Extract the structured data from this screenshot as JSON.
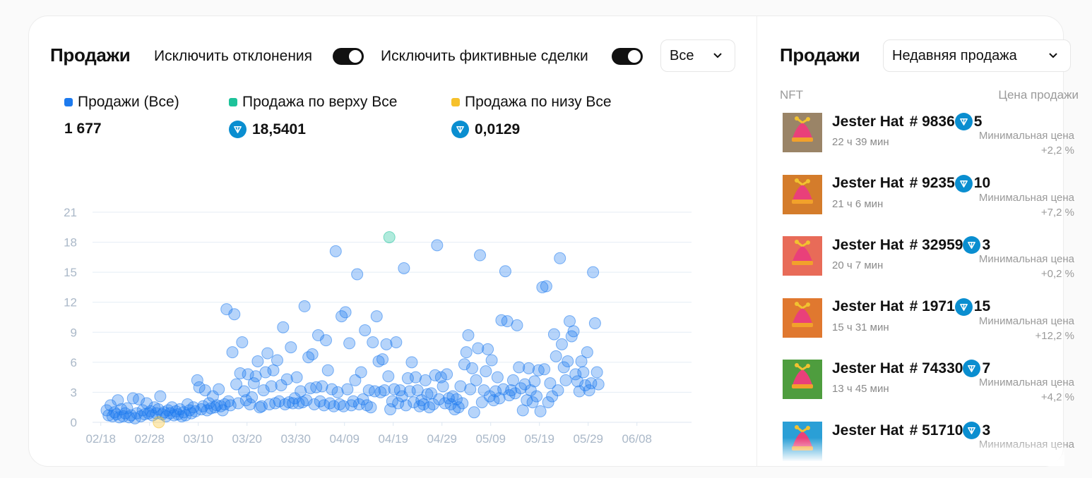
{
  "left": {
    "title": "Продажи",
    "toggle1_label": "Исключить отклонения",
    "toggle2_label": "Исключить фиктивные сделки",
    "filter_value": "Все",
    "legend": [
      {
        "label": "Продажи (Все)",
        "value": "1 677",
        "color": "#1d7aee"
      },
      {
        "label": "Продажа по верху Все",
        "value": "18,5401",
        "color": "#1dc29a"
      },
      {
        "label": "Продажа по низу Все",
        "value": "0,0129",
        "color": "#f6c12b"
      }
    ]
  },
  "right": {
    "title": "Продажи",
    "sort_value": "Недавняя продажа",
    "col_nft": "NFT",
    "col_price": "Цена продажи",
    "min_label": "Минимальная цена",
    "items": [
      {
        "name": "Jester Hat",
        "number": "# 9836",
        "price": "5",
        "time": "22 ч 39 мин",
        "delta": "+2,2 %",
        "bg": "#9a8467"
      },
      {
        "name": "Jester Hat",
        "number": "# 9235",
        "price": "10",
        "time": "21 ч 6 мин",
        "delta": "+7,2 %",
        "bg": "#d47c2b"
      },
      {
        "name": "Jester Hat",
        "number": "# 32959",
        "price": "3",
        "time": "20 ч 7 мин",
        "delta": "+0,2 %",
        "bg": "#e86b58"
      },
      {
        "name": "Jester Hat",
        "number": "# 1971",
        "price": "15",
        "time": "15 ч 31 мин",
        "delta": "+12,2 %",
        "bg": "#e0782f"
      },
      {
        "name": "Jester Hat",
        "number": "# 74330",
        "price": "7",
        "time": "13 ч 45 мин",
        "delta": "+4,2 %",
        "bg": "#4e9d3e"
      },
      {
        "name": "Jester Hat",
        "number": "# 51710",
        "price": "3",
        "time": "",
        "delta": "",
        "bg": "#2a9fd6"
      }
    ]
  },
  "chart_data": {
    "type": "scatter",
    "title": "",
    "xlabel": "",
    "ylabel": "",
    "x_ticks": [
      "02/18",
      "02/28",
      "03/10",
      "03/20",
      "03/30",
      "04/09",
      "04/19",
      "04/29",
      "05/09",
      "05/19",
      "05/29",
      "06/08"
    ],
    "y_ticks": [
      0,
      3,
      6,
      9,
      12,
      15,
      18,
      21
    ],
    "ylim": [
      0,
      21
    ],
    "grid": true,
    "x_range_days": [
      0,
      120
    ],
    "series": [
      {
        "name": "Продажи (Все)",
        "color": "#1d7aee",
        "points": [
          [
            0,
            1.2
          ],
          [
            0.4,
            0.7
          ],
          [
            0.8,
            1.7
          ],
          [
            1.2,
            0.6
          ],
          [
            1.6,
            1.0
          ],
          [
            2,
            0.8
          ],
          [
            2.3,
            2.2
          ],
          [
            2.6,
            0.5
          ],
          [
            3,
            1.3
          ],
          [
            3.4,
            0.6
          ],
          [
            3.8,
            0.9
          ],
          [
            4.2,
            1.4
          ],
          [
            4.6,
            0.5
          ],
          [
            5,
            0.7
          ],
          [
            5.4,
            2.4
          ],
          [
            5.8,
            0.4
          ],
          [
            6.2,
            0.9
          ],
          [
            6.6,
            2.3
          ],
          [
            7,
            0.6
          ],
          [
            7.4,
            1.2
          ],
          [
            7.8,
            0.8
          ],
          [
            8.2,
            1.9
          ],
          [
            8.6,
            0.9
          ],
          [
            9,
            1.1
          ],
          [
            9.4,
            0.7
          ],
          [
            9.8,
            1.5
          ],
          [
            10.2,
            0.9
          ],
          [
            10.6,
            1.3
          ],
          [
            11,
            2.6
          ],
          [
            11.4,
            0.8
          ],
          [
            11.8,
            1.0
          ],
          [
            12.2,
            0.6
          ],
          [
            12.6,
            1.2
          ],
          [
            13,
            0.9
          ],
          [
            13.4,
            1.5
          ],
          [
            13.8,
            0.7
          ],
          [
            14.2,
            1.1
          ],
          [
            14.6,
            0.8
          ],
          [
            15,
            1.3
          ],
          [
            15.4,
            0.6
          ],
          [
            15.8,
            1.0
          ],
          [
            16.2,
            0.7
          ],
          [
            16.6,
            1.8
          ],
          [
            17,
            1.2
          ],
          [
            17.4,
            0.9
          ],
          [
            17.8,
            1.5
          ],
          [
            18.2,
            1.1
          ],
          [
            18.6,
            4.2
          ],
          [
            19,
            3.5
          ],
          [
            19.4,
            1.3
          ],
          [
            19.8,
            1.6
          ],
          [
            20.2,
            3.2
          ],
          [
            20.6,
            1.2
          ],
          [
            21,
            1.9
          ],
          [
            21.4,
            1.4
          ],
          [
            21.8,
            2.6
          ],
          [
            22.2,
            1.5
          ],
          [
            22.6,
            1.7
          ],
          [
            23,
            3.3
          ],
          [
            23.4,
            1.6
          ],
          [
            23.8,
            1.2
          ],
          [
            24.2,
            1.8
          ],
          [
            24.6,
            11.3
          ],
          [
            25,
            2.1
          ],
          [
            25.4,
            1.7
          ],
          [
            25.8,
            7.0
          ],
          [
            26.2,
            10.8
          ],
          [
            26.6,
            3.8
          ],
          [
            27,
            1.9
          ],
          [
            27.4,
            4.9
          ],
          [
            27.8,
            8.0
          ],
          [
            28.2,
            3.1
          ],
          [
            28.6,
            2.2
          ],
          [
            29,
            4.8
          ],
          [
            29.4,
            1.8
          ],
          [
            29.8,
            2.5
          ],
          [
            30.2,
            3.9
          ],
          [
            30.6,
            4.6
          ],
          [
            31,
            6.1
          ],
          [
            31.4,
            1.5
          ],
          [
            31.8,
            1.6
          ],
          [
            32.2,
            3.2
          ],
          [
            32.6,
            5.0
          ],
          [
            33,
            6.9
          ],
          [
            33.4,
            1.8
          ],
          [
            33.8,
            3.6
          ],
          [
            34.2,
            5.2
          ],
          [
            34.6,
            1.9
          ],
          [
            35,
            6.2
          ],
          [
            35.4,
            2.1
          ],
          [
            35.8,
            3.7
          ],
          [
            36.2,
            9.5
          ],
          [
            36.6,
            1.8
          ],
          [
            37,
            4.3
          ],
          [
            37.4,
            2.0
          ],
          [
            37.8,
            7.5
          ],
          [
            38.2,
            1.9
          ],
          [
            38.6,
            2.4
          ],
          [
            39,
            4.5
          ],
          [
            39.4,
            1.9
          ],
          [
            39.8,
            3.1
          ],
          [
            40.2,
            2.0
          ],
          [
            40.6,
            11.6
          ],
          [
            41,
            2.2
          ],
          [
            41.4,
            6.5
          ],
          [
            41.8,
            3.4
          ],
          [
            42.2,
            6.8
          ],
          [
            42.6,
            1.8
          ],
          [
            43,
            3.5
          ],
          [
            43.4,
            8.7
          ],
          [
            43.8,
            2.1
          ],
          [
            44.2,
            3.6
          ],
          [
            44.6,
            1.7
          ],
          [
            45,
            8.2
          ],
          [
            45.4,
            5.2
          ],
          [
            45.8,
            1.9
          ],
          [
            46.2,
            3.3
          ],
          [
            46.6,
            1.6
          ],
          [
            47,
            17.1
          ],
          [
            47.4,
            3.0
          ],
          [
            47.8,
            1.8
          ],
          [
            48.2,
            10.6
          ],
          [
            48.6,
            1.6
          ],
          [
            49,
            11.0
          ],
          [
            49.4,
            3.3
          ],
          [
            49.8,
            7.9
          ],
          [
            50.2,
            1.7
          ],
          [
            50.6,
            2.1
          ],
          [
            51,
            4.2
          ],
          [
            51.4,
            14.8
          ],
          [
            51.8,
            1.8
          ],
          [
            52.2,
            5.0
          ],
          [
            52.6,
            2.3
          ],
          [
            53,
            9.2
          ],
          [
            53.4,
            1.7
          ],
          [
            53.8,
            3.2
          ],
          [
            54.2,
            1.5
          ],
          [
            54.6,
            8.0
          ],
          [
            55,
            3.1
          ],
          [
            55.4,
            10.6
          ],
          [
            55.8,
            6.1
          ],
          [
            56.2,
            3.0
          ],
          [
            56.6,
            6.3
          ],
          [
            57,
            3.2
          ],
          [
            57.4,
            7.8
          ],
          [
            57.8,
            4.6
          ],
          [
            58.2,
            1.3
          ],
          [
            58.6,
            2.1
          ],
          [
            59,
            3.3
          ],
          [
            59.4,
            8.0
          ],
          [
            59.8,
            1.9
          ],
          [
            60.2,
            3.2
          ],
          [
            60.6,
            2.6
          ],
          [
            61,
            15.4
          ],
          [
            61.4,
            1.7
          ],
          [
            61.8,
            4.4
          ],
          [
            62.2,
            3.1
          ],
          [
            62.6,
            6.0
          ],
          [
            63,
            2.0
          ],
          [
            63.4,
            4.5
          ],
          [
            63.8,
            3.2
          ],
          [
            64.2,
            1.6
          ],
          [
            64.6,
            2.2
          ],
          [
            65,
            1.8
          ],
          [
            65.4,
            4.2
          ],
          [
            65.8,
            2.8
          ],
          [
            66.2,
            1.5
          ],
          [
            66.6,
            2.9
          ],
          [
            67,
            1.8
          ],
          [
            67.4,
            4.7
          ],
          [
            67.8,
            17.7
          ],
          [
            68.2,
            2.3
          ],
          [
            68.6,
            4.5
          ],
          [
            69,
            3.6
          ],
          [
            69.4,
            1.9
          ],
          [
            69.8,
            4.8
          ],
          [
            70.2,
            2.4
          ],
          [
            70.6,
            1.8
          ],
          [
            71,
            2.6
          ],
          [
            71.4,
            1.3
          ],
          [
            71.8,
            2.3
          ],
          [
            72.2,
            1.5
          ],
          [
            72.6,
            3.6
          ],
          [
            73,
            1.9
          ],
          [
            73.4,
            5.8
          ],
          [
            73.8,
            7.0
          ],
          [
            74.2,
            8.7
          ],
          [
            74.6,
            3.3
          ],
          [
            75,
            5.4
          ],
          [
            75.4,
            1.0
          ],
          [
            75.8,
            4.2
          ],
          [
            76.2,
            7.4
          ],
          [
            76.6,
            16.7
          ],
          [
            77,
            2.0
          ],
          [
            77.4,
            3.2
          ],
          [
            77.8,
            5.1
          ],
          [
            78.2,
            7.3
          ],
          [
            78.6,
            2.6
          ],
          [
            79,
            6.2
          ],
          [
            79.4,
            2.2
          ],
          [
            79.8,
            3.1
          ],
          [
            80.2,
            4.5
          ],
          [
            80.6,
            2.4
          ],
          [
            81,
            10.2
          ],
          [
            81.4,
            3.3
          ],
          [
            81.8,
            15.1
          ],
          [
            82.2,
            10.1
          ],
          [
            82.6,
            2.7
          ],
          [
            83,
            3.2
          ],
          [
            83.4,
            4.2
          ],
          [
            83.8,
            2.9
          ],
          [
            84.2,
            9.7
          ],
          [
            84.6,
            5.5
          ],
          [
            85,
            3.4
          ],
          [
            85.4,
            1.2
          ],
          [
            85.8,
            3.8
          ],
          [
            86.2,
            2.2
          ],
          [
            86.6,
            5.4
          ],
          [
            87,
            3.2
          ],
          [
            87.4,
            2.0
          ],
          [
            87.8,
            4.1
          ],
          [
            88.2,
            2.6
          ],
          [
            88.6,
            5.2
          ],
          [
            89,
            1.1
          ],
          [
            89.4,
            13.5
          ],
          [
            89.8,
            5.3
          ],
          [
            90.2,
            13.6
          ],
          [
            90.6,
            2.0
          ],
          [
            91,
            3.9
          ],
          [
            91.4,
            2.6
          ],
          [
            91.8,
            8.8
          ],
          [
            92.2,
            6.6
          ],
          [
            92.6,
            3.2
          ],
          [
            93,
            16.4
          ],
          [
            93.4,
            7.8
          ],
          [
            93.8,
            5.5
          ],
          [
            94.2,
            4.2
          ],
          [
            94.6,
            6.1
          ],
          [
            95,
            10.1
          ],
          [
            95.4,
            8.6
          ],
          [
            95.8,
            9.1
          ],
          [
            96.2,
            4.8
          ],
          [
            96.6,
            4.1
          ],
          [
            97,
            3.1
          ],
          [
            97.4,
            6.1
          ],
          [
            97.8,
            5.0
          ],
          [
            98.2,
            3.7
          ],
          [
            98.6,
            7.0
          ],
          [
            99,
            3.2
          ],
          [
            99.4,
            3.9
          ],
          [
            99.8,
            15.0
          ],
          [
            100.2,
            9.9
          ],
          [
            100.6,
            5.0
          ],
          [
            100.9,
            3.8
          ]
        ]
      },
      {
        "name": "Продажа по верху Все",
        "color": "#1dc29a",
        "points": [
          [
            58,
            18.5
          ]
        ]
      },
      {
        "name": "Продажа по низу Все",
        "color": "#f6c12b",
        "points": [
          [
            10.7,
            0.0
          ]
        ]
      }
    ]
  }
}
